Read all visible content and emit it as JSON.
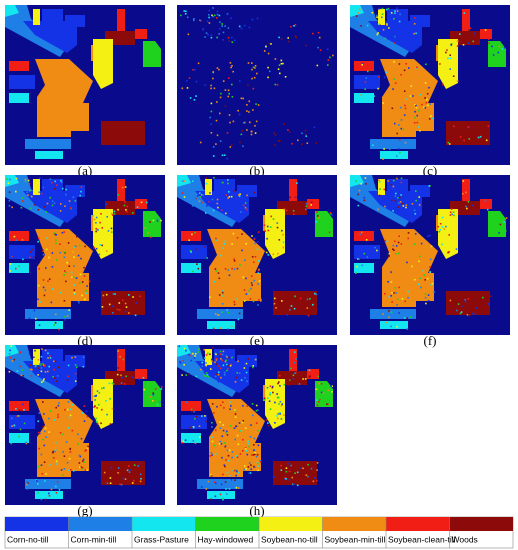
{
  "panels": [
    {
      "label": "(a)"
    },
    {
      "label": "(b)"
    },
    {
      "label": "(c)"
    },
    {
      "label": "(d)"
    },
    {
      "label": "(e)"
    },
    {
      "label": "(f)"
    },
    {
      "label": "(g)"
    },
    {
      "label": "(h)"
    }
  ],
  "legend": [
    {
      "name": "Corn-no-till",
      "color": "#1433e6"
    },
    {
      "name": "Corn-min-till",
      "color": "#1e7fe6"
    },
    {
      "name": "Grass-Pasture",
      "color": "#14e6f0"
    },
    {
      "name": "Hay-windowed",
      "color": "#1ed21e"
    },
    {
      "name": "Soybean-no-till",
      "color": "#f5f014"
    },
    {
      "name": "Soybean-min-till",
      "color": "#f08c14"
    },
    {
      "name": "Soybean-clean-till",
      "color": "#f01e14"
    },
    {
      "name": "Woods",
      "color": "#8c0a0a"
    }
  ]
}
